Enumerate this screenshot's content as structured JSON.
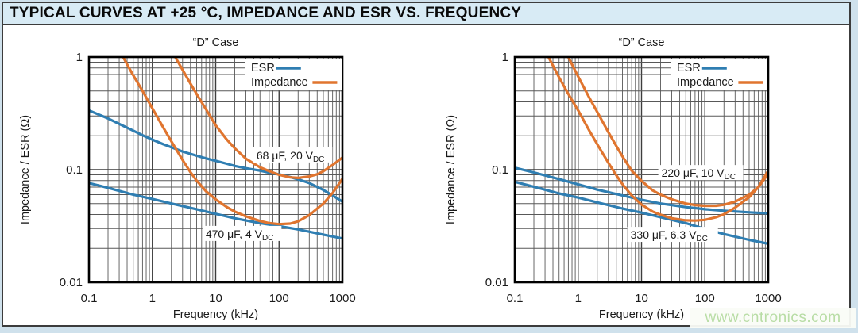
{
  "page": {
    "title": "TYPICAL CURVES AT +25 °C, IMPEDANCE AND ESR VS. FREQUENCY",
    "watermark": "www.cntronics.com",
    "colors": {
      "esr": "#2f7eb2",
      "impedance": "#e0752f",
      "page_bg": "#cfe1ec",
      "header_bg": "#d8ebf5",
      "frame": "#000000",
      "grid_major": "#3d3d3d",
      "grid_minor": "#585858",
      "text": "#1a1a1a",
      "watermark_green": "#b9dda6"
    }
  },
  "chart_data": [
    {
      "type": "line",
      "title": "“D” Case",
      "xlabel": "Frequency (kHz)",
      "ylabel": "Impedance / ESR (Ω)",
      "xscale": "log",
      "yscale": "log",
      "xlim": [
        0.1,
        1000
      ],
      "ylim": [
        0.01,
        1
      ],
      "grid": true,
      "x_ticks": [
        "0.1",
        "1",
        "10",
        "100",
        "1000"
      ],
      "y_ticks": [
        "1",
        "0.1",
        "0.01"
      ],
      "legend": {
        "position": "top-right",
        "entries": [
          {
            "label": "ESR",
            "color_key": "esr"
          },
          {
            "label": "Impedance",
            "color_key": "impedance"
          }
        ]
      },
      "annotations": [
        {
          "main": "68 μF, 20 V",
          "sub": "DC",
          "x": 165,
          "y": 0.132
        },
        {
          "main": "470 μF, 4 V",
          "sub": "DC",
          "x": 26,
          "y": 0.0265
        }
      ],
      "series": [
        {
          "name": "ESR",
          "capacitor": "68 μF, 20 VDC",
          "color_key": "esr",
          "points": [
            [
              0.1,
              0.335
            ],
            [
              0.15,
              0.305
            ],
            [
              0.2,
              0.285
            ],
            [
              0.3,
              0.255
            ],
            [
              0.5,
              0.222
            ],
            [
              0.7,
              0.202
            ],
            [
              1,
              0.185
            ],
            [
              1.5,
              0.168
            ],
            [
              2,
              0.158
            ],
            [
              3,
              0.145
            ],
            [
              5,
              0.133
            ],
            [
              7,
              0.126
            ],
            [
              10,
              0.12
            ],
            [
              15,
              0.113
            ],
            [
              20,
              0.108
            ],
            [
              30,
              0.103
            ],
            [
              50,
              0.098
            ],
            [
              70,
              0.094
            ],
            [
              100,
              0.091
            ],
            [
              150,
              0.086
            ],
            [
              200,
              0.082
            ],
            [
              300,
              0.076
            ],
            [
              500,
              0.066
            ],
            [
              700,
              0.059
            ],
            [
              1000,
              0.052
            ]
          ]
        },
        {
          "name": "Impedance",
          "capacitor": "68 μF, 20 VDC",
          "color_key": "impedance",
          "points": [
            [
              1.6,
              1.45
            ],
            [
              2,
              1.15
            ],
            [
              2.5,
              0.92
            ],
            [
              3,
              0.77
            ],
            [
              4,
              0.58
            ],
            [
              5,
              0.47
            ],
            [
              7,
              0.345
            ],
            [
              10,
              0.248
            ],
            [
              15,
              0.185
            ],
            [
              20,
              0.155
            ],
            [
              30,
              0.125
            ],
            [
              50,
              0.105
            ],
            [
              70,
              0.097
            ],
            [
              100,
              0.09
            ],
            [
              150,
              0.0855
            ],
            [
              200,
              0.0845
            ],
            [
              300,
              0.087
            ],
            [
              400,
              0.091
            ],
            [
              500,
              0.097
            ],
            [
              700,
              0.11
            ],
            [
              1000,
              0.128
            ]
          ]
        },
        {
          "name": "ESR",
          "capacitor": "470 μF, 4 VDC",
          "color_key": "esr",
          "points": [
            [
              0.1,
              0.076
            ],
            [
              0.2,
              0.069
            ],
            [
              0.5,
              0.06
            ],
            [
              1,
              0.055
            ],
            [
              2,
              0.05
            ],
            [
              5,
              0.0445
            ],
            [
              10,
              0.0405
            ],
            [
              20,
              0.037
            ],
            [
              50,
              0.0335
            ],
            [
              100,
              0.0315
            ],
            [
              200,
              0.0295
            ],
            [
              500,
              0.0265
            ],
            [
              1000,
              0.0245
            ]
          ]
        },
        {
          "name": "Impedance",
          "capacitor": "470 μF, 4 VDC",
          "color_key": "impedance",
          "points": [
            [
              0.25,
              1.4
            ],
            [
              0.3,
              1.15
            ],
            [
              0.35,
              0.99
            ],
            [
              0.4,
              0.86
            ],
            [
              0.5,
              0.69
            ],
            [
              0.7,
              0.5
            ],
            [
              1,
              0.35
            ],
            [
              1.5,
              0.235
            ],
            [
              2,
              0.178
            ],
            [
              3,
              0.122
            ],
            [
              4,
              0.095
            ],
            [
              5,
              0.08
            ],
            [
              7,
              0.0645
            ],
            [
              10,
              0.0545
            ],
            [
              15,
              0.0465
            ],
            [
              20,
              0.0425
            ],
            [
              30,
              0.0385
            ],
            [
              50,
              0.035
            ],
            [
              70,
              0.0335
            ],
            [
              100,
              0.0328
            ],
            [
              150,
              0.0332
            ],
            [
              200,
              0.0348
            ],
            [
              300,
              0.0395
            ],
            [
              500,
              0.05
            ],
            [
              700,
              0.062
            ],
            [
              1000,
              0.083
            ]
          ]
        }
      ]
    },
    {
      "type": "line",
      "title": "“D” Case",
      "xlabel": "Frequency (kHz)",
      "ylabel": "Impedance / ESR (Ω)",
      "xscale": "log",
      "yscale": "log",
      "xlim": [
        0.1,
        1000
      ],
      "ylim": [
        0.01,
        1
      ],
      "grid": true,
      "x_ticks": [
        "0.1",
        "1",
        "10",
        "100",
        "1000"
      ],
      "y_ticks": [
        "1",
        "0.1",
        "0.01"
      ],
      "legend": {
        "position": "top-right",
        "entries": [
          {
            "label": "ESR",
            "color_key": "esr"
          },
          {
            "label": "Impedance",
            "color_key": "impedance"
          }
        ]
      },
      "annotations": [
        {
          "main": "220 μF, 10 V",
          "sub": "DC",
          "x": 86,
          "y": 0.092
        },
        {
          "main": "330 μF, 6.3 V",
          "sub": "DC",
          "x": 31,
          "y": 0.026
        }
      ],
      "series": [
        {
          "name": "ESR",
          "capacitor": "220 μF, 10 VDC",
          "color_key": "esr",
          "points": [
            [
              0.1,
              0.104
            ],
            [
              0.2,
              0.0945
            ],
            [
              0.5,
              0.0825
            ],
            [
              1,
              0.074
            ],
            [
              2,
              0.0665
            ],
            [
              5,
              0.059
            ],
            [
              10,
              0.054
            ],
            [
              20,
              0.05
            ],
            [
              50,
              0.0465
            ],
            [
              100,
              0.0445
            ],
            [
              200,
              0.0432
            ],
            [
              500,
              0.0418
            ],
            [
              1000,
              0.041
            ]
          ]
        },
        {
          "name": "Impedance",
          "capacitor": "220 μF, 10 VDC",
          "color_key": "impedance",
          "points": [
            [
              0.55,
              1.3
            ],
            [
              0.7,
              1.0
            ],
            [
              0.8,
              0.86
            ],
            [
              1,
              0.67
            ],
            [
              1.5,
              0.435
            ],
            [
              2,
              0.325
            ],
            [
              3,
              0.215
            ],
            [
              4,
              0.162
            ],
            [
              5,
              0.131
            ],
            [
              7,
              0.098
            ],
            [
              10,
              0.0795
            ],
            [
              15,
              0.0655
            ],
            [
              20,
              0.06
            ],
            [
              30,
              0.0545
            ],
            [
              50,
              0.05
            ],
            [
              70,
              0.0485
            ],
            [
              100,
              0.0478
            ],
            [
              150,
              0.0478
            ],
            [
              200,
              0.0488
            ],
            [
              300,
              0.052
            ],
            [
              500,
              0.06
            ],
            [
              700,
              0.07
            ],
            [
              1000,
              0.092
            ]
          ]
        },
        {
          "name": "ESR",
          "capacitor": "330 μF, 6.3 VDC",
          "color_key": "esr",
          "points": [
            [
              0.1,
              0.078
            ],
            [
              0.2,
              0.0705
            ],
            [
              0.5,
              0.0615
            ],
            [
              1,
              0.0565
            ],
            [
              2,
              0.0512
            ],
            [
              5,
              0.0452
            ],
            [
              10,
              0.0415
            ],
            [
              20,
              0.0378
            ],
            [
              50,
              0.0335
            ],
            [
              100,
              0.0298
            ],
            [
              200,
              0.0268
            ],
            [
              500,
              0.0238
            ],
            [
              1000,
              0.022
            ]
          ]
        },
        {
          "name": "Impedance",
          "capacitor": "330 μF, 6.3 VDC",
          "color_key": "impedance",
          "points": [
            [
              0.28,
              1.25
            ],
            [
              0.34,
              1.0
            ],
            [
              0.4,
              0.84
            ],
            [
              0.5,
              0.66
            ],
            [
              0.7,
              0.47
            ],
            [
              1,
              0.335
            ],
            [
              1.5,
              0.222
            ],
            [
              2,
              0.168
            ],
            [
              3,
              0.115
            ],
            [
              4,
              0.089
            ],
            [
              5,
              0.0745
            ],
            [
              7,
              0.059
            ],
            [
              10,
              0.049
            ],
            [
              15,
              0.0425
            ],
            [
              20,
              0.0398
            ],
            [
              30,
              0.037
            ],
            [
              50,
              0.0355
            ],
            [
              70,
              0.0353
            ],
            [
              100,
              0.0358
            ],
            [
              150,
              0.0378
            ],
            [
              200,
              0.0402
            ],
            [
              300,
              0.046
            ],
            [
              500,
              0.057
            ],
            [
              700,
              0.07
            ],
            [
              1000,
              0.098
            ]
          ]
        }
      ]
    }
  ]
}
